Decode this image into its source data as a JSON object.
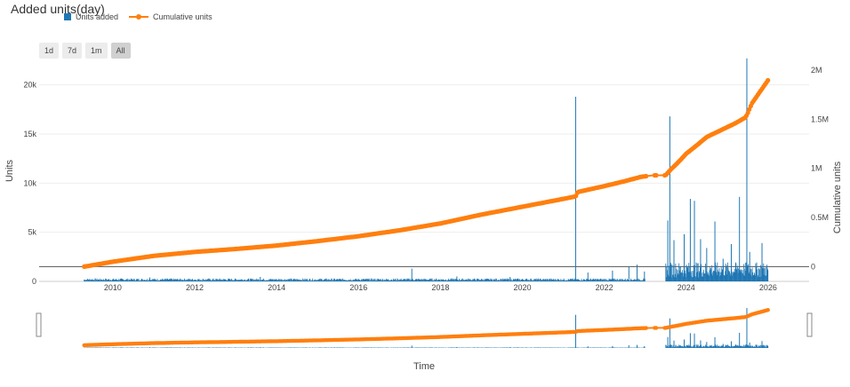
{
  "chart_data": {
    "type": "bar+line",
    "title": "Added units(day)",
    "legend": [
      "Units added",
      "Cumulative units"
    ],
    "range_buttons": [
      "1d",
      "7d",
      "1m",
      "All"
    ],
    "active_range": "All",
    "xlabel": "Time",
    "ylabel": "Units",
    "y2label": "Cumulative units",
    "x_ticks": [
      "2010",
      "2012",
      "2014",
      "2016",
      "2018",
      "2020",
      "2022",
      "2024",
      "2026"
    ],
    "y_ticks": [
      "0",
      "5k",
      "10k",
      "15k",
      "20k"
    ],
    "y2_ticks": [
      "0",
      "0.5M",
      "1M",
      "1.5M",
      "2M"
    ],
    "xlim": [
      2008.2,
      2027.0
    ],
    "ylim": [
      0,
      22500
    ],
    "y2lim": [
      -150000,
      2100000
    ],
    "colors": {
      "bars": "#1f77b4",
      "line": "#ff7f0e"
    },
    "series": [
      {
        "name": "Units added",
        "type": "bar",
        "spikes": [
          {
            "x": 2010.9,
            "y": 400
          },
          {
            "x": 2013.6,
            "y": 450
          },
          {
            "x": 2017.3,
            "y": 1300
          },
          {
            "x": 2018.4,
            "y": 500
          },
          {
            "x": 2019.7,
            "y": 450
          },
          {
            "x": 2021.3,
            "y": 18800
          },
          {
            "x": 2021.6,
            "y": 900
          },
          {
            "x": 2022.2,
            "y": 1100
          },
          {
            "x": 2022.6,
            "y": 1500
          },
          {
            "x": 2022.8,
            "y": 1700
          },
          {
            "x": 2022.98,
            "y": 1000
          },
          {
            "x": 2023.55,
            "y": 6200
          },
          {
            "x": 2023.6,
            "y": 16800
          },
          {
            "x": 2023.7,
            "y": 4200
          },
          {
            "x": 2023.95,
            "y": 4800
          },
          {
            "x": 2024.1,
            "y": 8400
          },
          {
            "x": 2024.2,
            "y": 8200
          },
          {
            "x": 2024.35,
            "y": 4300
          },
          {
            "x": 2024.5,
            "y": 3400
          },
          {
            "x": 2024.7,
            "y": 6100
          },
          {
            "x": 2024.9,
            "y": 2300
          },
          {
            "x": 2025.1,
            "y": 3800
          },
          {
            "x": 2025.3,
            "y": 8600
          },
          {
            "x": 2025.48,
            "y": 22700
          },
          {
            "x": 2025.55,
            "y": 3000
          },
          {
            "x": 2025.85,
            "y": 3900
          }
        ],
        "baseline_segments": [
          {
            "from": 2009.3,
            "to": 2023.0,
            "level": 200
          },
          {
            "from": 2023.5,
            "to": 2026.0,
            "level": 1300
          }
        ]
      },
      {
        "name": "Cumulative units",
        "type": "line",
        "x": [
          2009.3,
          2010.0,
          2011.0,
          2012.0,
          2013.0,
          2014.0,
          2015.0,
          2016.0,
          2017.0,
          2018.0,
          2019.0,
          2020.0,
          2021.0,
          2021.3,
          2021.35,
          2022.0,
          2022.5,
          2022.9,
          2023.2,
          2023.5,
          2023.6,
          2023.8,
          2024.0,
          2024.3,
          2024.5,
          2024.8,
          2025.0,
          2025.2,
          2025.45,
          2025.5,
          2025.6,
          2025.8,
          2026.0
        ],
        "values": [
          0,
          50000,
          110000,
          150000,
          180000,
          215000,
          260000,
          310000,
          370000,
          440000,
          530000,
          610000,
          690000,
          715000,
          760000,
          820000,
          870000,
          915000,
          930000,
          930000,
          980000,
          1060000,
          1150000,
          1250000,
          1320000,
          1380000,
          1420000,
          1460000,
          1520000,
          1560000,
          1660000,
          1780000,
          1900000
        ]
      }
    ],
    "range_slider": {
      "xlim": [
        2008.2,
        2027.0
      ]
    }
  }
}
